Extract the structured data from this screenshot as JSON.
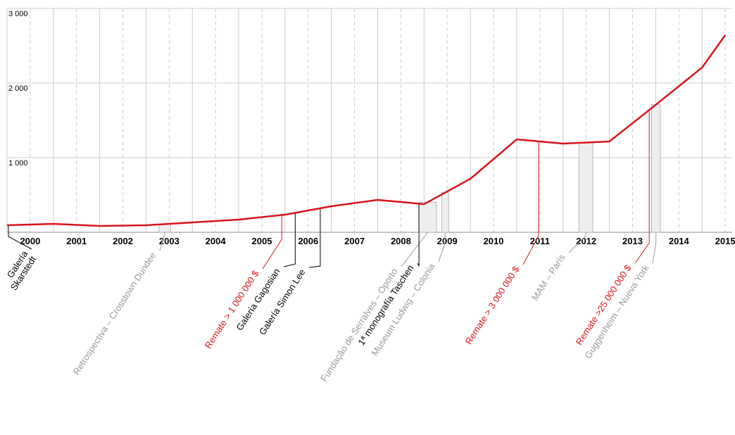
{
  "chart_data": {
    "type": "line",
    "x": [
      1999.5,
      2000.5,
      2001.5,
      2002.5,
      2003.5,
      2004.5,
      2005.5,
      2006.5,
      2007.5,
      2008.5,
      2009.5,
      2010.5,
      2011.5,
      2012.5,
      2013.5,
      2014.5,
      2015
    ],
    "values": [
      94,
      113,
      85,
      94,
      132,
      170,
      236,
      349,
      434,
      377,
      717,
      1245,
      1189,
      1217,
      1708,
      2208,
      2642
    ],
    "color": "#d7141a",
    "xlim": [
      1999.5,
      2015.15
    ],
    "xticks": [
      2000,
      2001,
      2002,
      2003,
      2004,
      2005,
      2006,
      2007,
      2008,
      2009,
      2010,
      2011,
      2012,
      2013,
      2014,
      2015
    ],
    "ylim": [
      0,
      3000
    ],
    "yticks": [
      {
        "value": 1000,
        "label": "1 000"
      },
      {
        "value": 2000,
        "label": "2 000"
      },
      {
        "value": 3000,
        "label": "3 000"
      }
    ],
    "grid": true,
    "annotations": [
      {
        "lines": [
          "Galería",
          "Skarstedt"
        ],
        "color": "#000000",
        "x": 1999.53
      },
      {
        "lines": [
          "Retrospectiva – Crosstown Dundee"
        ],
        "color": "#999999",
        "x_range": [
          2002.78,
          2003.03
        ]
      },
      {
        "lines": [
          "Remate > 1 000 000 $"
        ],
        "color": "#d7141a",
        "x": 2005.43
      },
      {
        "lines": [
          "Galería Gagosian"
        ],
        "color": "#000000",
        "x": 2005.72
      },
      {
        "lines": [
          "Galería Simon Lee"
        ],
        "color": "#000000",
        "x": 2006.26
      },
      {
        "lines": [
          "Fundação de Serralves – Oporto"
        ],
        "color": "#999999",
        "x_range": [
          2008.39,
          2008.77
        ]
      },
      {
        "lines": [
          "1ª monografía Taschen"
        ],
        "color": "#000000",
        "x": 2008.39
      },
      {
        "lines": [
          "Museum Ludwig – Colonia"
        ],
        "color": "#999999",
        "x_range": [
          2008.88,
          2009.03
        ]
      },
      {
        "lines": [
          "Remate > 3 000 000 $"
        ],
        "color": "#d7141a",
        "x": 2010.97
      },
      {
        "lines": [
          "MAM – París"
        ],
        "color": "#999999",
        "x_range": [
          2011.84,
          2012.14
        ]
      },
      {
        "lines": [
          "Remate >25 000 000 $"
        ],
        "color": "#d7141a",
        "x": 2013.36
      },
      {
        "lines": [
          "Guggenheim – Nueva York"
        ],
        "color": "#999999",
        "x_range": [
          2013.41,
          2013.6
        ]
      }
    ]
  }
}
